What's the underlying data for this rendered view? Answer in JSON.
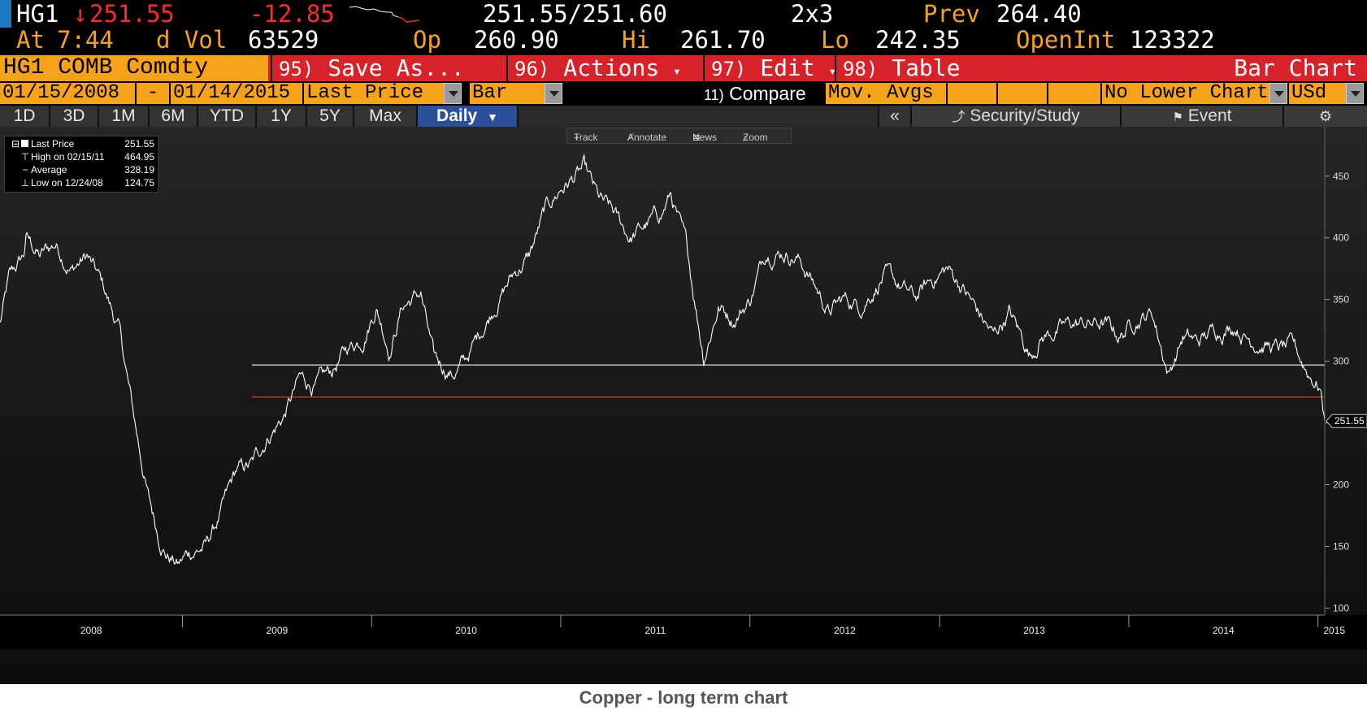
{
  "quote": {
    "ticker": "HG1",
    "arrow": "↓",
    "last": "251.55",
    "change": "-12.85",
    "bid_ask": "251.55/251.60",
    "size": "2x3",
    "prev_label": "Prev",
    "prev": "264.40",
    "at_label": "At",
    "time": "7:44",
    "dvol_label": "d Vol",
    "volume": "63529",
    "open_label": "Op",
    "open": "260.90",
    "high_label": "Hi",
    "high": "261.70",
    "low_label": "Lo",
    "low": "242.35",
    "oi_label": "OpenInt",
    "open_interest": "123322"
  },
  "menu": {
    "security": "HG1 COMB Comdty",
    "save": {
      "num": "95)",
      "label": "Save As..."
    },
    "actions": {
      "num": "96)",
      "label": "Actions"
    },
    "edit": {
      "num": "97)",
      "label": "Edit"
    },
    "table": {
      "num": "98)",
      "label": "Table"
    },
    "chart_type": "Bar Chart"
  },
  "controls": {
    "start_date": "01/15/2008",
    "dash": "-",
    "end_date": "01/14/2015",
    "field": "Last Price",
    "style": "Bar",
    "compare_num": "11)",
    "compare": "Compare",
    "mov_avgs": "Mov. Avgs",
    "lower_chart": "No Lower Chart",
    "currency": "USd"
  },
  "periods": [
    "1D",
    "3D",
    "1M",
    "6M",
    "YTD",
    "1Y",
    "5Y",
    "Max",
    "Daily"
  ],
  "active_period": "Daily",
  "tools": {
    "collapse": "«",
    "security_study": "Security/Study",
    "event": "Event",
    "settings_icon": "gear-icon"
  },
  "chart_toolbar": {
    "track": "Track",
    "annotate": "Annotate",
    "news": "News",
    "zoom": "Zoom"
  },
  "legend": [
    {
      "key": "Last Price",
      "value": "251.55"
    },
    {
      "key": "High on 02/15/11",
      "value": "464.95"
    },
    {
      "key": "Average",
      "value": "328.19"
    },
    {
      "key": "Low on 12/24/08",
      "value": "124.75"
    }
  ],
  "colors": {
    "amber": "#f7a21b",
    "red": "#d8222a",
    "accent": "#2b4f9a"
  },
  "chart_data": {
    "type": "line",
    "title": "",
    "xlabel": "",
    "ylabel": "",
    "ylim": [
      95,
      490
    ],
    "xlim": [
      "2008-01-15",
      "2015-01-14"
    ],
    "y_ticks": [
      100,
      150,
      200,
      250,
      300,
      350,
      400,
      450
    ],
    "x_tick_labels": [
      "2008",
      "2009",
      "2010",
      "2011",
      "2012",
      "2013",
      "2014",
      "2015"
    ],
    "last_price_tag": "251.55",
    "reference_lines": [
      {
        "value": 297,
        "color": "#ffffff"
      },
      {
        "value": 271,
        "color": "#e33b1f"
      }
    ],
    "series": [
      {
        "x": [
          "2008-01-15",
          "2008-02-01",
          "2008-03-01",
          "2008-03-05",
          "2008-04-01",
          "2008-05-01",
          "2008-06-01",
          "2008-07-01",
          "2008-08-01",
          "2008-09-01",
          "2008-10-01",
          "2008-10-27",
          "2008-11-15",
          "2008-12-01",
          "2008-12-24",
          "2009-01-15",
          "2009-02-15",
          "2009-03-15",
          "2009-04-15",
          "2009-05-15",
          "2009-06-15",
          "2009-07-15",
          "2009-08-15",
          "2009-09-15",
          "2009-10-15",
          "2009-11-15",
          "2009-12-15",
          "2010-01-10",
          "2010-02-05",
          "2010-03-01",
          "2010-04-06",
          "2010-05-01",
          "2010-06-07",
          "2010-07-01",
          "2010-08-01",
          "2010-09-01",
          "2010-10-01",
          "2010-11-01",
          "2010-12-01",
          "2011-01-01",
          "2011-02-15",
          "2011-03-15",
          "2011-04-10",
          "2011-05-15",
          "2011-06-15",
          "2011-07-15",
          "2011-08-01",
          "2011-09-01",
          "2011-10-04",
          "2011-11-01",
          "2011-12-01",
          "2012-01-01",
          "2012-02-01",
          "2012-03-01",
          "2012-04-01",
          "2012-05-01",
          "2012-06-01",
          "2012-07-01",
          "2012-08-01",
          "2012-09-15",
          "2012-10-15",
          "2012-11-15",
          "2012-12-15",
          "2013-01-15",
          "2013-02-15",
          "2013-03-15",
          "2013-04-15",
          "2013-05-15",
          "2013-06-25",
          "2013-07-15",
          "2013-08-15",
          "2013-09-15",
          "2013-10-15",
          "2013-11-15",
          "2013-12-15",
          "2014-01-15",
          "2014-02-15",
          "2014-03-19",
          "2014-04-15",
          "2014-05-15",
          "2014-06-15",
          "2014-07-27",
          "2014-08-15",
          "2014-09-15",
          "2014-10-15",
          "2014-11-15",
          "2014-12-15",
          "2015-01-05",
          "2015-01-14"
        ],
        "y": [
          330,
          365,
          385,
          400,
          385,
          395,
          375,
          385,
          360,
          325,
          250,
          190,
          160,
          145,
          135,
          145,
          150,
          175,
          210,
          215,
          240,
          255,
          285,
          280,
          290,
          310,
          320,
          345,
          310,
          345,
          355,
          300,
          290,
          300,
          325,
          350,
          370,
          385,
          420,
          440,
          455,
          430,
          420,
          400,
          410,
          420,
          435,
          390,
          305,
          345,
          335,
          350,
          390,
          390,
          385,
          365,
          340,
          350,
          345,
          370,
          360,
          350,
          365,
          375,
          360,
          340,
          320,
          340,
          305,
          320,
          325,
          330,
          330,
          330,
          320,
          335,
          340,
          290,
          320,
          315,
          325,
          330,
          320,
          315,
          310,
          310,
          290,
          280,
          251.55
        ]
      }
    ]
  },
  "caption": "Copper - long term chart"
}
